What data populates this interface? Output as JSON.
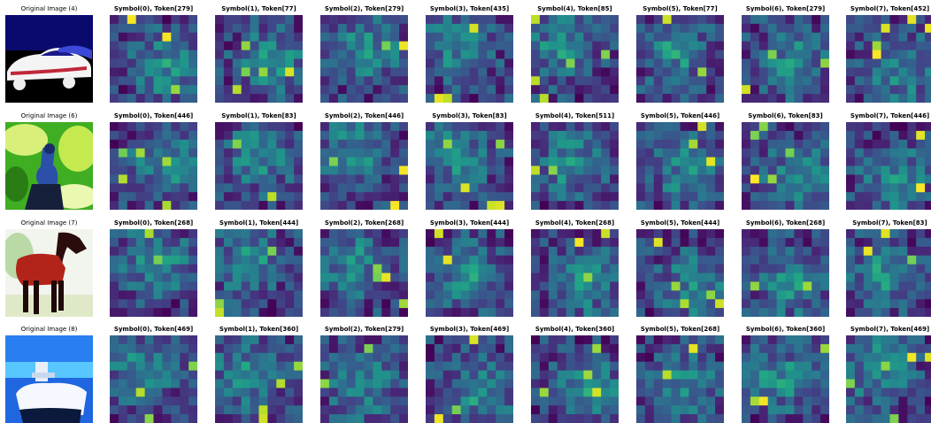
{
  "rows": [
    {
      "title": "Original Image (4)",
      "image": "car",
      "symbols": [
        "Symbol(0), Token[279]",
        "Symbol(1), Token[77]",
        "Symbol(2), Token[279]",
        "Symbol(3), Token[435]",
        "Symbol(4), Token[85]",
        "Symbol(5), Token[77]",
        "Symbol(6), Token[279]",
        "Symbol(7), Token[452]"
      ]
    },
    {
      "title": "Original Image (6)",
      "image": "bird",
      "symbols": [
        "Symbol(0), Token[446]",
        "Symbol(1), Token[83]",
        "Symbol(2), Token[446]",
        "Symbol(3), Token[83]",
        "Symbol(4), Token[511]",
        "Symbol(5), Token[446]",
        "Symbol(6), Token[83]",
        "Symbol(7), Token[446]"
      ]
    },
    {
      "title": "Original Image (7)",
      "image": "horse",
      "symbols": [
        "Symbol(0), Token[268]",
        "Symbol(1), Token[444]",
        "Symbol(2), Token[268]",
        "Symbol(3), Token[444]",
        "Symbol(4), Token[268]",
        "Symbol(5), Token[444]",
        "Symbol(6), Token[268]",
        "Symbol(7), Token[83]"
      ]
    },
    {
      "title": "Original Image (8)",
      "image": "ship",
      "symbols": [
        "Symbol(0), Token[469]",
        "Symbol(1), Token[360]",
        "Symbol(2), Token[279]",
        "Symbol(3), Token[469]",
        "Symbol(4), Token[360]",
        "Symbol(5), Token[268]",
        "Symbol(6), Token[360]",
        "Symbol(7), Token[469]"
      ]
    }
  ],
  "chart_data": {
    "type": "heatmap",
    "grid_size": [
      10,
      10
    ],
    "colormap": "viridis",
    "value_range": [
      0,
      1
    ],
    "layout": "4 rows x 9 columns; first column original images, then 8 attention maps per row"
  }
}
